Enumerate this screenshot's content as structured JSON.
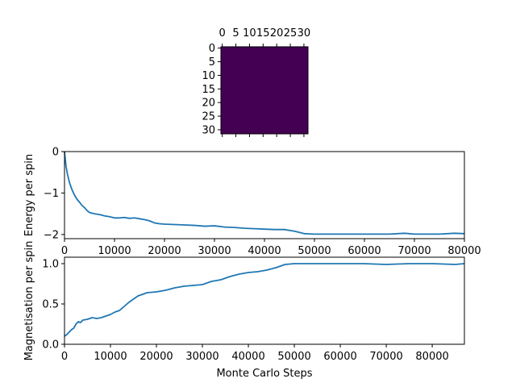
{
  "chart_data": [
    {
      "type": "heatmap",
      "title": "",
      "grid_size": 32,
      "value": -1,
      "colormap": "viridis",
      "cell_color": "#440154",
      "xticks": [
        0,
        5,
        10,
        15,
        20,
        25,
        30
      ],
      "xtick_labels": [
        "0",
        "5",
        "10",
        "15",
        "20",
        "25",
        "30"
      ],
      "yticks": [
        0,
        5,
        10,
        15,
        20,
        25,
        30
      ],
      "ytick_labels": [
        "0",
        "5",
        "10",
        "15",
        "20",
        "25",
        "30"
      ],
      "xlim": [
        -0.5,
        31.5
      ],
      "ylim": [
        -0.5,
        31.5
      ],
      "x_axis_position": "top"
    },
    {
      "type": "line",
      "title": "",
      "xlabel": "",
      "ylabel": "Energy per spin",
      "xlim": [
        0,
        80000
      ],
      "ylim": [
        -2.1,
        0
      ],
      "xticks": [
        0,
        10000,
        20000,
        30000,
        40000,
        50000,
        60000,
        70000,
        80000
      ],
      "xtick_labels": [
        "0",
        "10000",
        "20000",
        "30000",
        "40000",
        "50000",
        "60000",
        "70000",
        "80000"
      ],
      "yticks": [
        0,
        -1,
        -2
      ],
      "ytick_labels": [
        "0",
        "−1",
        "−2"
      ],
      "grid": false,
      "series": [
        {
          "color": "#1f77b4",
          "x": [
            0,
            300,
            600,
            1000,
            1500,
            2000,
            2500,
            3000,
            3500,
            4000,
            4500,
            5000,
            6000,
            7000,
            8000,
            9000,
            10000,
            11000,
            12000,
            13000,
            14000,
            15000,
            16000,
            17000,
            18000,
            19000,
            20000,
            22000,
            24000,
            26000,
            28000,
            30000,
            32000,
            34000,
            36000,
            38000,
            40000,
            42000,
            44000,
            45000,
            46000,
            47000,
            48000,
            50000,
            55000,
            60000,
            65000,
            68000,
            70000,
            72000,
            75000,
            78000,
            80000
          ],
          "y": [
            0.0,
            -0.35,
            -0.55,
            -0.75,
            -0.92,
            -1.05,
            -1.15,
            -1.22,
            -1.3,
            -1.35,
            -1.42,
            -1.47,
            -1.5,
            -1.52,
            -1.55,
            -1.57,
            -1.6,
            -1.6,
            -1.59,
            -1.61,
            -1.6,
            -1.62,
            -1.64,
            -1.67,
            -1.72,
            -1.74,
            -1.75,
            -1.76,
            -1.77,
            -1.78,
            -1.8,
            -1.79,
            -1.82,
            -1.83,
            -1.85,
            -1.86,
            -1.87,
            -1.88,
            -1.88,
            -1.9,
            -1.92,
            -1.95,
            -1.98,
            -1.99,
            -1.99,
            -1.99,
            -1.99,
            -1.97,
            -1.99,
            -1.99,
            -1.99,
            -1.97,
            -1.98
          ]
        }
      ]
    },
    {
      "type": "line",
      "title": "",
      "xlabel": "Monte Carlo Steps",
      "ylabel": "Magnetisation per spin",
      "xlim": [
        0,
        87000
      ],
      "ylim": [
        0,
        1.08
      ],
      "xticks": [
        0,
        10000,
        20000,
        30000,
        40000,
        50000,
        60000,
        70000,
        80000
      ],
      "xtick_labels": [
        "0",
        "10000",
        "20000",
        "30000",
        "40000",
        "50000",
        "60000",
        "70000",
        "80000"
      ],
      "yticks": [
        0.0,
        0.5,
        1.0
      ],
      "ytick_labels": [
        "0.0",
        "0.5",
        "1.0"
      ],
      "grid": false,
      "series": [
        {
          "color": "#1f77b4",
          "x": [
            0,
            500,
            1000,
            1500,
            2000,
            2500,
            3000,
            3500,
            4000,
            5000,
            6000,
            7000,
            8000,
            9000,
            10000,
            11000,
            12000,
            13000,
            14000,
            15000,
            16000,
            17000,
            18000,
            20000,
            22000,
            24000,
            26000,
            28000,
            30000,
            32000,
            34000,
            36000,
            38000,
            40000,
            42000,
            44000,
            46000,
            47000,
            48000,
            50000,
            55000,
            60000,
            65000,
            70000,
            75000,
            80000,
            85000,
            87000
          ],
          "y": [
            0.1,
            0.12,
            0.15,
            0.18,
            0.2,
            0.25,
            0.28,
            0.27,
            0.3,
            0.31,
            0.33,
            0.32,
            0.33,
            0.35,
            0.37,
            0.4,
            0.42,
            0.47,
            0.52,
            0.56,
            0.6,
            0.62,
            0.64,
            0.65,
            0.67,
            0.7,
            0.72,
            0.73,
            0.74,
            0.78,
            0.8,
            0.84,
            0.87,
            0.89,
            0.9,
            0.92,
            0.95,
            0.97,
            0.99,
            1.0,
            1.0,
            1.0,
            1.0,
            0.99,
            1.0,
            1.0,
            0.99,
            1.0
          ]
        }
      ]
    }
  ]
}
